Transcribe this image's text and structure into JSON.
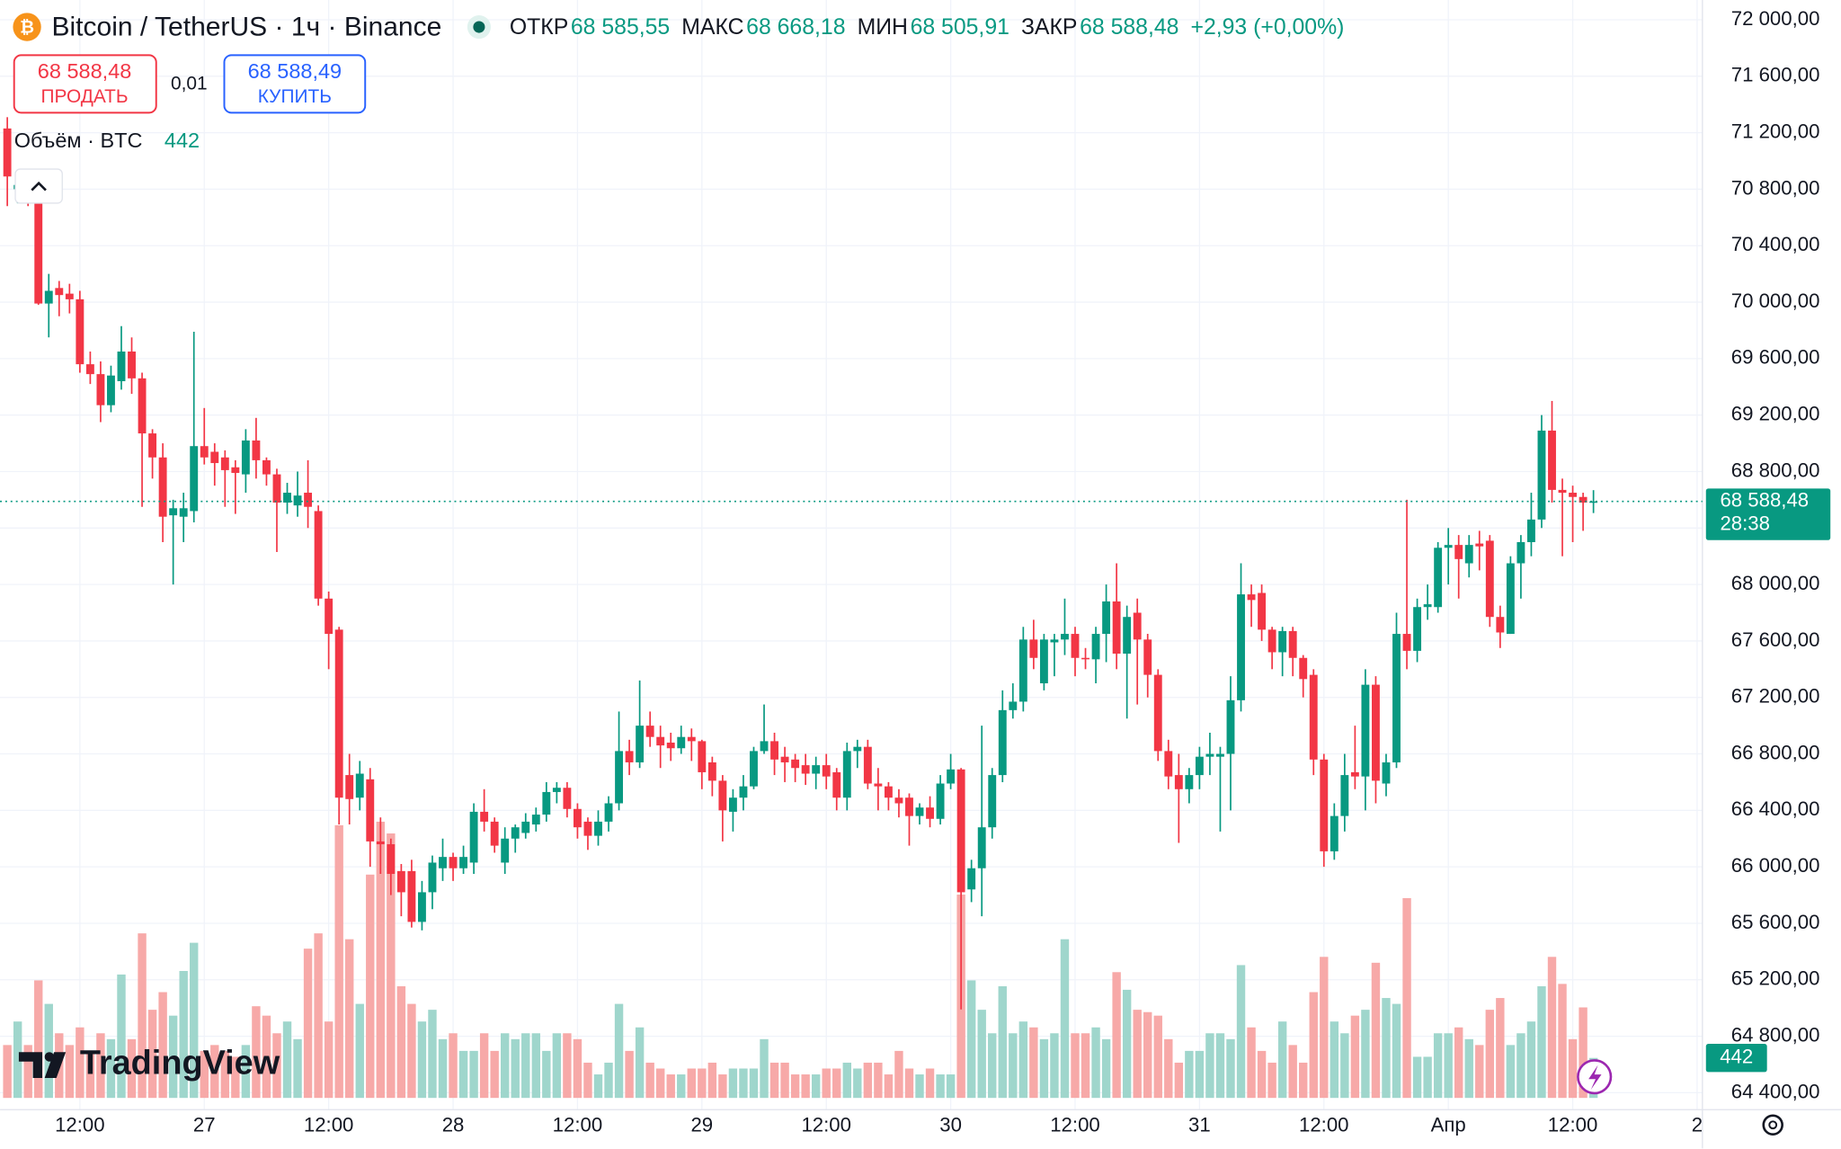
{
  "header": {
    "title": "Bitcoin / TetherUS · 1ч · Binance",
    "items": [
      {
        "name": "ОТКР",
        "value": "68 585,55"
      },
      {
        "name": "МАКС",
        "value": "68 668,18"
      },
      {
        "name": "МИН",
        "value": "68 505,91"
      },
      {
        "name": "ЗАКР",
        "value": "68 588,48"
      }
    ],
    "change": "+2,93 (+0,00%)"
  },
  "trade": {
    "sell_price": "68 588,48",
    "sell_label": "ПРОДАТЬ",
    "spread": "0,01",
    "buy_price": "68 588,49",
    "buy_label": "КУПИТЬ"
  },
  "indicator": {
    "name": "Объём · BTC"
  },
  "logo": "TradingView",
  "chart_data": {
    "type": "candlestick",
    "categories": [
      null,
      null,
      null,
      null,
      null,
      null,
      null,
      "12:00",
      null,
      null,
      null,
      null,
      null,
      null,
      null,
      null,
      null,
      null,
      null,
      "27",
      null,
      null,
      null,
      null,
      null,
      null,
      null,
      null,
      null,
      null,
      null,
      "12:00",
      null,
      null,
      null,
      null,
      null,
      null,
      null,
      null,
      null,
      null,
      null,
      "28",
      null,
      null,
      null,
      null,
      null,
      null,
      null,
      null,
      null,
      null,
      null,
      "12:00",
      null,
      null,
      null,
      null,
      null,
      null,
      null,
      null,
      null,
      null,
      null,
      "29",
      null,
      null,
      null,
      null,
      null,
      null,
      null,
      null,
      null,
      null,
      null,
      "12:00",
      null,
      null,
      null,
      null,
      null,
      null,
      null,
      null,
      null,
      null,
      null,
      "30",
      null,
      null,
      null,
      null,
      null,
      null,
      null,
      null,
      null,
      null,
      null,
      "12:00",
      null,
      null,
      null,
      null,
      null,
      null,
      null,
      null,
      null,
      null,
      null,
      "31",
      null,
      null,
      null,
      null,
      null,
      null,
      null,
      null,
      null,
      null,
      null,
      "12:00",
      null,
      null,
      null,
      null,
      null,
      null,
      null,
      null,
      null,
      null,
      null,
      "Апр",
      null,
      null,
      null,
      null,
      null,
      null,
      null,
      null,
      null,
      null,
      null,
      "12:00",
      null,
      null,
      null,
      null,
      null,
      null,
      null,
      null,
      null,
      null,
      null,
      "2"
    ],
    "open": [
      71230,
      70800,
      70850,
      70770,
      69990,
      70100,
      70060,
      70020,
      69560,
      69490,
      69270,
      69440,
      69650,
      69460,
      69070,
      68900,
      68490,
      68480,
      68520,
      68980,
      68940,
      68900,
      68830,
      68780,
      69020,
      68880,
      68780,
      68580,
      68560,
      68650,
      68520,
      67900,
      67680,
      66650,
      66490,
      66620,
      66180,
      66160,
      65970,
      65970,
      65610,
      65820,
      65990,
      66070,
      65990,
      66030,
      66390,
      66320,
      66030,
      66200,
      66240,
      66300,
      66370,
      66530,
      66560,
      66410,
      66320,
      66220,
      66320,
      66450,
      66820,
      66740,
      67000,
      66920,
      66880,
      66840,
      66920,
      66890,
      66740,
      66610,
      66390,
      66490,
      66570,
      66820,
      66890,
      66780,
      66760,
      66720,
      66660,
      66720,
      66670,
      66490,
      66820,
      66850,
      66590,
      66570,
      66490,
      66490,
      66360,
      66420,
      66340,
      66590,
      66690,
      65840,
      65990,
      66280,
      66650,
      67110,
      67170,
      67610,
      67300,
      67590,
      67610,
      67650,
      67480,
      67470,
      67650,
      67880,
      67510,
      67800,
      67610,
      67360,
      66820,
      66650,
      66550,
      66650,
      66780,
      66780,
      66800,
      67180,
      67930,
      67940,
      67680,
      67520,
      67670,
      67480,
      67360,
      66760,
      66110,
      66360,
      66670,
      66640,
      67290,
      66590,
      66740,
      67650,
      67530,
      67840,
      67840,
      68260,
      68280,
      68150,
      68290,
      68310,
      67770,
      67650,
      68150,
      68300,
      68460,
      69090,
      68670,
      68650,
      68620,
      68585.55,
      null,
      null,
      null,
      null,
      null,
      null,
      null,
      null,
      null,
      null
    ],
    "high": [
      71310,
      70900,
      70920,
      70820,
      70200,
      70150,
      70130,
      70080,
      69650,
      69580,
      69550,
      69830,
      69750,
      69500,
      69100,
      69000,
      68600,
      68650,
      69790,
      69250,
      69000,
      68950,
      68880,
      69100,
      69180,
      68900,
      68820,
      68720,
      68800,
      68880,
      68560,
      67950,
      67700,
      66800,
      66750,
      66700,
      66350,
      66200,
      66020,
      66050,
      65900,
      66080,
      66200,
      66100,
      66150,
      66450,
      66550,
      66350,
      66280,
      66300,
      66380,
      66420,
      66600,
      66600,
      66600,
      66450,
      66350,
      66400,
      66500,
      67100,
      66900,
      67320,
      67100,
      67000,
      66950,
      67000,
      66980,
      66900,
      66780,
      66650,
      66550,
      66650,
      66850,
      67150,
      66950,
      66850,
      66800,
      66800,
      66780,
      66800,
      66700,
      66880,
      66900,
      66900,
      66700,
      66600,
      66550,
      66520,
      66450,
      66500,
      66650,
      66800,
      66700,
      66050,
      67000,
      66700,
      67250,
      67300,
      67700,
      67750,
      67650,
      67650,
      67900,
      67700,
      67550,
      67700,
      68000,
      68150,
      67850,
      67900,
      67650,
      67400,
      66900,
      66800,
      66700,
      66850,
      66950,
      66850,
      67350,
      68150,
      68000,
      68000,
      67700,
      67700,
      67700,
      67500,
      67400,
      66800,
      66450,
      66800,
      67000,
      67400,
      67350,
      66800,
      67800,
      68600,
      67900,
      68000,
      68300,
      68400,
      68350,
      68350,
      68380,
      68350,
      67850,
      68200,
      68350,
      68650,
      69200,
      69300,
      68750,
      68700,
      68650,
      68668.18,
      null,
      null,
      null,
      null,
      null,
      null,
      null,
      null,
      null,
      null
    ],
    "low": [
      70680,
      70700,
      70680,
      69980,
      69750,
      69900,
      69920,
      69500,
      69420,
      69150,
      69220,
      69380,
      69350,
      68550,
      68750,
      68300,
      68000,
      68300,
      68440,
      68850,
      68700,
      68550,
      68500,
      68650,
      68750,
      68700,
      68230,
      68500,
      68480,
      68400,
      67850,
      67400,
      66300,
      66300,
      66400,
      66000,
      65950,
      65800,
      65650,
      65570,
      65550,
      65700,
      65900,
      65900,
      65950,
      65950,
      66250,
      66100,
      65950,
      66100,
      66200,
      66250,
      66320,
      66450,
      66350,
      66200,
      66120,
      66150,
      66250,
      66400,
      66650,
      66700,
      66850,
      66700,
      66750,
      66800,
      66750,
      66550,
      66500,
      66180,
      66250,
      66400,
      66550,
      66800,
      66650,
      66600,
      66600,
      66580,
      66550,
      66550,
      66400,
      66400,
      66700,
      66550,
      66400,
      66400,
      66350,
      66150,
      66300,
      66280,
      66300,
      66550,
      64990,
      65750,
      65650,
      66200,
      66600,
      67050,
      67100,
      67400,
      67250,
      67350,
      67500,
      67350,
      67400,
      67300,
      67450,
      67400,
      67050,
      67150,
      67200,
      66750,
      66550,
      66170,
      66450,
      66550,
      66650,
      66250,
      66400,
      67100,
      67700,
      67600,
      67400,
      67350,
      67350,
      67200,
      66650,
      66000,
      66050,
      66250,
      66550,
      66400,
      66450,
      66500,
      66700,
      67400,
      67450,
      67750,
      67800,
      68000,
      67900,
      68050,
      68100,
      67700,
      67550,
      67650,
      67900,
      68200,
      68400,
      68580,
      68200,
      68300,
      68380,
      68505.91,
      null,
      null,
      null,
      null,
      null,
      null,
      null,
      null,
      null,
      null
    ],
    "close": [
      70890,
      70830,
      70750,
      69990,
      70080,
      70050,
      70020,
      69560,
      69490,
      69270,
      69480,
      69650,
      69460,
      69070,
      68900,
      68480,
      68540,
      68540,
      68980,
      68900,
      68860,
      68810,
      68790,
      69020,
      68880,
      68780,
      68580,
      68650,
      68630,
      68550,
      67900,
      67650,
      66490,
      66480,
      66660,
      66180,
      66160,
      65950,
      65820,
      65610,
      65820,
      66030,
      66070,
      65990,
      66070,
      66390,
      66320,
      66150,
      66200,
      66280,
      66320,
      66370,
      66530,
      66560,
      66410,
      66280,
      66220,
      66320,
      66450,
      66820,
      66740,
      67000,
      66920,
      66860,
      66840,
      66920,
      66890,
      66670,
      66610,
      66400,
      66490,
      66570,
      66820,
      66890,
      66760,
      66740,
      66700,
      66660,
      66720,
      66640,
      66490,
      66820,
      66850,
      66590,
      66570,
      66490,
      66450,
      66360,
      66420,
      66340,
      66590,
      66690,
      65820,
      65990,
      66280,
      66650,
      67110,
      67170,
      67610,
      67480,
      67610,
      67610,
      67650,
      67480,
      67470,
      67650,
      67880,
      67510,
      67770,
      67610,
      67360,
      66820,
      66640,
      66550,
      66650,
      66780,
      66800,
      66800,
      67180,
      67930,
      67890,
      67680,
      67520,
      67670,
      67480,
      67330,
      66760,
      66110,
      66360,
      66650,
      66640,
      67290,
      66610,
      66740,
      67650,
      67530,
      67840,
      67860,
      68260,
      68280,
      68180,
      68280,
      68270,
      67770,
      67660,
      68150,
      68300,
      68460,
      69090,
      68670,
      68650,
      68620,
      68580,
      68588.48,
      null,
      null,
      null,
      null,
      null,
      null,
      null,
      null,
      null,
      null
    ],
    "volume": [
      585,
      845,
      585,
      1300,
      1040,
      715,
      585,
      780,
      520,
      715,
      650,
      1365,
      650,
      1820,
      975,
      1170,
      910,
      1404,
      1716,
      520,
      585,
      520,
      455,
      585,
      1014,
      910,
      715,
      845,
      650,
      1651,
      1820,
      845,
      3016,
      1755,
      1040,
      2470,
      3055,
      2925,
      1235,
      1040,
      845,
      975,
      650,
      715,
      520,
      520,
      715,
      520,
      715,
      650,
      715,
      715,
      520,
      715,
      715,
      650,
      390,
      260,
      390,
      1040,
      520,
      780,
      390,
      325,
      260,
      260,
      325,
      325,
      390,
      260,
      325,
      325,
      325,
      650,
      390,
      390,
      260,
      260,
      260,
      325,
      325,
      390,
      325,
      390,
      390,
      260,
      520,
      325,
      260,
      325,
      260,
      260,
      2249,
      1300,
      975,
      715,
      1235,
      715,
      845,
      780,
      650,
      715,
      1755,
      715,
      715,
      780,
      650,
      1391,
      1196,
      975,
      949,
      910,
      650,
      390,
      520,
      520,
      715,
      715,
      650,
      1469,
      780,
      520,
      390,
      845,
      585,
      390,
      1170,
      1560,
      845,
      715,
      910,
      975,
      1495,
      1105,
      1040,
      2210,
      455,
      455,
      715,
      715,
      780,
      650,
      585,
      975,
      1105,
      585,
      715,
      845,
      1235,
      1560,
      1261,
      650,
      1001,
      442,
      null,
      null,
      null,
      null,
      null,
      null,
      null,
      null,
      null,
      null
    ],
    "ylim": [
      64280,
      72140
    ],
    "yticks": [
      {
        "value": 64400,
        "label": "64 400,00"
      },
      {
        "value": 64800,
        "label": "64 800,00"
      },
      {
        "value": 65200,
        "label": "65 200,00"
      },
      {
        "value": 65600,
        "label": "65 600,00"
      },
      {
        "value": 66000,
        "label": "66 000,00"
      },
      {
        "value": 66400,
        "label": "66 400,00"
      },
      {
        "value": 66800,
        "label": "66 800,00"
      },
      {
        "value": 67200,
        "label": "67 200,00"
      },
      {
        "value": 67600,
        "label": "67 600,00"
      },
      {
        "value": 68000,
        "label": "68 000,00"
      },
      {
        "value": 68400,
        "label": "68 400,00"
      },
      {
        "value": 68800,
        "label": "68 800,00"
      },
      {
        "value": 69200,
        "label": "69 200,00"
      },
      {
        "value": 69600,
        "label": "69 600,00"
      },
      {
        "value": 70000,
        "label": "70 000,00"
      },
      {
        "value": 70400,
        "label": "70 400,00"
      },
      {
        "value": 70800,
        "label": "70 800,00"
      },
      {
        "value": 71200,
        "label": "71 200,00"
      },
      {
        "value": 71600,
        "label": "71 600,00"
      },
      {
        "value": 72000,
        "label": "72 000,00"
      }
    ],
    "y2lim": [
      0,
      4000
    ],
    "last_price": {
      "value": 68588.48,
      "label": "68 588,48"
    },
    "countdown": "28:38",
    "grid": true,
    "up_color": "#089981",
    "down_color": "#f23645",
    "volume_up_color": "#9fd6cc",
    "volume_down_color": "#f7a9a8"
  }
}
